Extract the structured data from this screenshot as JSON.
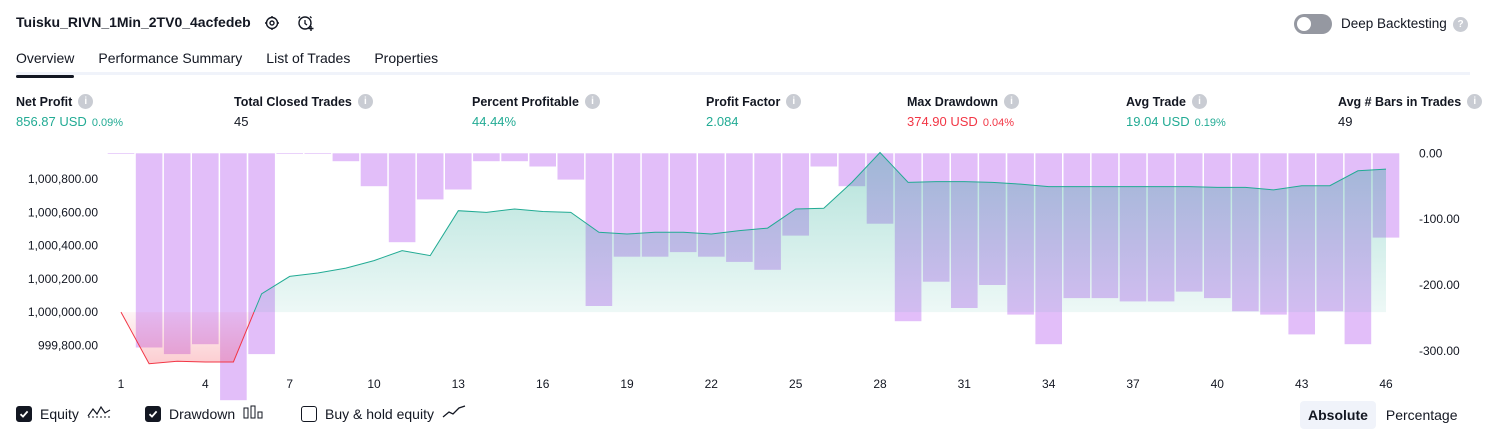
{
  "header": {
    "title": "Tuisku_RIVN_1Min_2TV0_4acfedeb",
    "deep_backtesting_label": "Deep Backtesting",
    "help_glyph": "?"
  },
  "tabs": [
    {
      "label": "Overview",
      "active": true
    },
    {
      "label": "Performance Summary",
      "active": false
    },
    {
      "label": "List of Trades",
      "active": false
    },
    {
      "label": "Properties",
      "active": false
    }
  ],
  "metrics": [
    {
      "label": "Net Profit",
      "value": "856.87 USD",
      "pct": "0.09%",
      "color": "green"
    },
    {
      "label": "Total Closed Trades",
      "value": "45",
      "pct": "",
      "color": "dark"
    },
    {
      "label": "Percent Profitable",
      "value": "44.44%",
      "pct": "",
      "color": "green"
    },
    {
      "label": "Profit Factor",
      "value": "2.084",
      "pct": "",
      "color": "green"
    },
    {
      "label": "Max Drawdown",
      "value": "374.90 USD",
      "pct": "0.04%",
      "color": "red"
    },
    {
      "label": "Avg Trade",
      "value": "19.04 USD",
      "pct": "0.19%",
      "color": "green"
    },
    {
      "label": "Avg # Bars in Trades",
      "value": "49",
      "pct": "",
      "color": "dark"
    }
  ],
  "colors": {
    "equity_line": "#22ab94",
    "equity_fill": "#22ab94",
    "loss_line": "#f23645",
    "drawdown_bar": "#ce93f5",
    "text": "#131722",
    "muted": "#9598a1"
  },
  "chart_data": {
    "type": "area",
    "x_ticks": [
      "1",
      "4",
      "7",
      "10",
      "13",
      "16",
      "19",
      "22",
      "25",
      "28",
      "31",
      "34",
      "37",
      "40",
      "43",
      "46"
    ],
    "y_left_ticks": [
      "1,000,800.00",
      "1,000,600.00",
      "1,000,400.00",
      "1,000,200.00",
      "1,000,000.00",
      "999,800.00"
    ],
    "y_right_ticks": [
      "0.00",
      "-100.00",
      "-200.00",
      "-300.00"
    ],
    "ylim_left": [
      999700,
      1000975
    ],
    "ylim_right": [
      -317,
      5
    ],
    "series": [
      {
        "name": "Equity",
        "x": [
          1,
          2,
          3,
          4,
          5,
          6,
          7,
          8,
          9,
          10,
          11,
          12,
          13,
          14,
          15,
          16,
          17,
          18,
          19,
          20,
          21,
          22,
          23,
          24,
          25,
          26,
          27,
          28,
          29,
          30,
          31,
          32,
          33,
          34,
          35,
          36,
          37,
          38,
          39,
          40,
          41,
          42,
          43,
          44,
          45,
          46
        ],
        "values": [
          1000000,
          999690,
          999705,
          999700,
          999700,
          1000110,
          1000215,
          1000235,
          1000265,
          1000310,
          1000370,
          1000340,
          1000610,
          1000600,
          1000620,
          1000605,
          1000600,
          1000480,
          1000470,
          1000480,
          1000480,
          1000470,
          1000490,
          1000505,
          1000620,
          1000625,
          1000780,
          1000960,
          1000780,
          1000785,
          1000785,
          1000780,
          1000770,
          1000755,
          1000755,
          1000755,
          1000755,
          1000755,
          1000755,
          1000750,
          1000750,
          1000735,
          1000760,
          1000760,
          1000850,
          1000860
        ]
      },
      {
        "name": "Drawdown",
        "x": [
          1,
          2,
          3,
          4,
          5,
          6,
          7,
          8,
          9,
          10,
          11,
          12,
          13,
          14,
          15,
          16,
          17,
          18,
          19,
          20,
          21,
          22,
          23,
          24,
          25,
          26,
          27,
          28,
          29,
          30,
          31,
          32,
          33,
          34,
          35,
          36,
          37,
          38,
          39,
          40,
          41,
          42,
          43,
          44,
          45,
          46
        ],
        "values": [
          -1,
          -295,
          -305,
          -290,
          -375,
          -305,
          -1,
          -1,
          -12,
          -50,
          -135,
          -70,
          -55,
          -12,
          -12,
          -20,
          -40,
          -232,
          -157,
          -157,
          -150,
          -157,
          -165,
          -177,
          -125,
          -20,
          -50,
          -107,
          -255,
          -195,
          -235,
          -200,
          -245,
          -290,
          -220,
          -220,
          -225,
          -225,
          -210,
          -220,
          -240,
          -245,
          -275,
          -240,
          -290,
          -128
        ]
      }
    ]
  },
  "legend": [
    {
      "label": "Equity",
      "checked": true,
      "icon": "equity-wave-icon"
    },
    {
      "label": "Drawdown",
      "checked": true,
      "icon": "drawdown-bars-icon"
    },
    {
      "label": "Buy & hold equity",
      "checked": false,
      "icon": "buy-hold-line-icon"
    }
  ],
  "view_modes": [
    {
      "label": "Absolute",
      "active": true
    },
    {
      "label": "Percentage",
      "active": false
    }
  ]
}
